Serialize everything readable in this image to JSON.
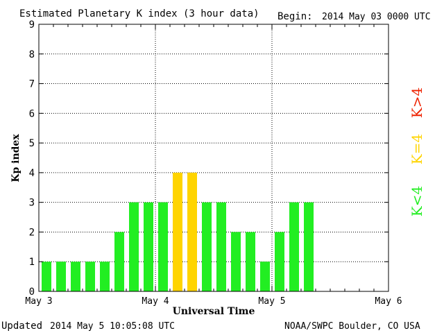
{
  "header": {
    "title": "Estimated Planetary K index (3 hour data)",
    "begin_label": "Begin:",
    "begin_value": "2014 May 03 0000 UTC"
  },
  "footer": {
    "updated_label": "Updated",
    "updated_value": "2014 May  5 10:05:08 UTC",
    "credit": "NOAA/SWPC Boulder, CO USA"
  },
  "legend": {
    "below": "K<4",
    "equal": "K=4",
    "above": "K>4"
  },
  "colors": {
    "below": "#22ee22",
    "equal": "#ffd400",
    "above": "#ee2200",
    "grid": "#000000"
  },
  "chart_data": {
    "type": "bar",
    "title": "Estimated Planetary K index (3 hour data)",
    "xlabel": "Universal Time",
    "ylabel": "Kp index",
    "ylim": [
      0,
      9
    ],
    "yticks": [
      "0",
      "1",
      "2",
      "3",
      "4",
      "5",
      "6",
      "7",
      "8",
      "9"
    ],
    "xticks": [
      "May 3",
      "May 4",
      "May 5",
      "May 6"
    ],
    "bar_interval_hours": 3,
    "total_slots": 24,
    "values": [
      1,
      1,
      1,
      1,
      1,
      2,
      3,
      3,
      3,
      4,
      4,
      3,
      3,
      2,
      2,
      1,
      2,
      3,
      3
    ],
    "grid": true
  }
}
